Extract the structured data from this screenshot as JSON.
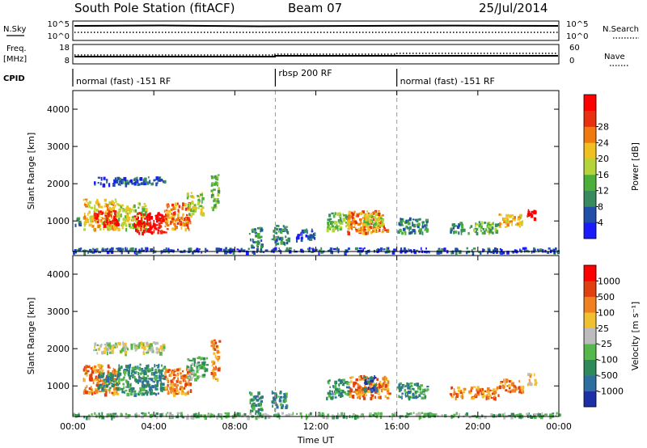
{
  "header": {
    "station": "South Pole Station (fitACF)",
    "beam": "Beam 07",
    "date": "25/Jul/2014"
  },
  "strips": {
    "nsky": {
      "label": "N.Sky",
      "ticks": [
        "10^5",
        "10^0"
      ],
      "right_label": "N.Search",
      "right_ticks": [
        "10^5",
        "10^0"
      ]
    },
    "freq": {
      "label_line1": "Freq.",
      "label_line2": "[MHz]",
      "ticks": [
        "18",
        "8"
      ],
      "right_label": "Nave",
      "right_ticks": [
        "60",
        "0"
      ]
    },
    "cpid": {
      "label": "CPID",
      "segments": [
        {
          "start_hour": 0,
          "end_hour": 10,
          "text": "normal (fast) -151 RF"
        },
        {
          "start_hour": 10,
          "end_hour": 16,
          "text": "rbsp 200 RF"
        },
        {
          "start_hour": 16,
          "end_hour": 24,
          "text": "normal (fast) -151 RF"
        }
      ]
    }
  },
  "colors": {
    "power": [
      "#1a1aff",
      "#1f4fa8",
      "#3a8a5f",
      "#4caf3a",
      "#b5d33a",
      "#f0c020",
      "#f07a10",
      "#e83010",
      "#ff0000"
    ],
    "velocity": [
      "#1c2fa6",
      "#2e6fa0",
      "#2e8a5a",
      "#55b84a",
      "#bcbcbc",
      "#f0c030",
      "#f08020",
      "#e04010",
      "#ff0000"
    ]
  },
  "chart_data": [
    {
      "type": "heatmap",
      "panel": "power",
      "title": "",
      "xlabel": "Time UT",
      "ylabel": "Slant Range [km]",
      "xlim_hours": [
        0,
        24
      ],
      "ylim": [
        180,
        4500
      ],
      "x_ticks": [
        "00:00",
        "04:00",
        "08:00",
        "12:00",
        "16:00",
        "20:00",
        "00:00"
      ],
      "y_ticks": [
        1000,
        2000,
        3000,
        4000
      ],
      "vlines_hours": [
        10,
        16
      ],
      "colorbar": {
        "label": "Power [dB]",
        "ticks": [
          "4",
          "8",
          "12",
          "16",
          "20",
          "24",
          "28"
        ]
      },
      "regions": [
        {
          "t0": 0.1,
          "t1": 0.35,
          "r0": 900,
          "r1": 1200,
          "level": 2
        },
        {
          "t0": 0.5,
          "t1": 2.2,
          "r0": 800,
          "r1": 1600,
          "level": 5
        },
        {
          "t0": 1.0,
          "t1": 2.2,
          "r0": 900,
          "r1": 1300,
          "level": 7
        },
        {
          "t0": 2.2,
          "t1": 3.6,
          "r0": 800,
          "r1": 1500,
          "level": 4
        },
        {
          "t0": 3.0,
          "t1": 4.6,
          "r0": 700,
          "r1": 1250,
          "level": 8
        },
        {
          "t0": 4.5,
          "t1": 5.8,
          "r0": 800,
          "r1": 1500,
          "level": 6
        },
        {
          "t0": 5.6,
          "t1": 6.4,
          "r0": 1200,
          "r1": 1800,
          "level": 4
        },
        {
          "t0": 6.8,
          "t1": 7.2,
          "r0": 1300,
          "r1": 2300,
          "level": 3
        },
        {
          "t0": 1.0,
          "t1": 4.5,
          "r0": 2000,
          "r1": 2200,
          "level": 1
        },
        {
          "t0": 8.7,
          "t1": 9.3,
          "r0": 300,
          "r1": 850,
          "level": 2
        },
        {
          "t0": 9.8,
          "t1": 10.6,
          "r0": 400,
          "r1": 900,
          "level": 2
        },
        {
          "t0": 11.0,
          "t1": 12.0,
          "r0": 500,
          "r1": 800,
          "level": 1
        },
        {
          "t0": 12.5,
          "t1": 13.6,
          "r0": 800,
          "r1": 1250,
          "level": 3
        },
        {
          "t0": 13.5,
          "t1": 15.5,
          "r0": 700,
          "r1": 1300,
          "level": 6
        },
        {
          "t0": 14.3,
          "t1": 15.3,
          "r0": 900,
          "r1": 1250,
          "level": 4
        },
        {
          "t0": 16.0,
          "t1": 17.5,
          "r0": 700,
          "r1": 1100,
          "level": 2
        },
        {
          "t0": 18.6,
          "t1": 19.3,
          "r0": 700,
          "r1": 1000,
          "level": 2
        },
        {
          "t0": 19.5,
          "t1": 21.0,
          "r0": 700,
          "r1": 1000,
          "level": 3
        },
        {
          "t0": 21.0,
          "t1": 22.2,
          "r0": 850,
          "r1": 1200,
          "level": 5
        },
        {
          "t0": 22.4,
          "t1": 22.8,
          "r0": 1050,
          "r1": 1350,
          "level": 8
        },
        {
          "t0": 0.0,
          "t1": 24.0,
          "r0": 180,
          "r1": 300,
          "level": 1
        }
      ]
    },
    {
      "type": "heatmap",
      "panel": "velocity",
      "title": "",
      "xlabel": "Time UT",
      "ylabel": "Slant Range [km]",
      "xlim_hours": [
        0,
        24
      ],
      "ylim": [
        180,
        4500
      ],
      "x_ticks": [
        "00:00",
        "04:00",
        "08:00",
        "12:00",
        "16:00",
        "20:00",
        "00:00"
      ],
      "y_ticks": [
        1000,
        2000,
        3000,
        4000
      ],
      "vlines_hours": [
        10,
        16
      ],
      "colorbar": {
        "label": "Velocity [m s⁻¹]",
        "ticks": [
          "1000",
          "500",
          "100",
          "25",
          "-25",
          "-100",
          "-500",
          "-1000"
        ]
      },
      "regions": [
        {
          "t0": 0.5,
          "t1": 2.2,
          "r0": 800,
          "r1": 1600,
          "level": 6
        },
        {
          "t0": 1.2,
          "t1": 2.2,
          "r0": 900,
          "r1": 1400,
          "level": 2
        },
        {
          "t0": 2.2,
          "t1": 4.5,
          "r0": 800,
          "r1": 1600,
          "level": 2
        },
        {
          "t0": 4.5,
          "t1": 5.8,
          "r0": 800,
          "r1": 1500,
          "level": 6
        },
        {
          "t0": 5.6,
          "t1": 6.6,
          "r0": 1200,
          "r1": 1800,
          "level": 3
        },
        {
          "t0": 6.8,
          "t1": 7.2,
          "r0": 1200,
          "r1": 2300,
          "level": 6
        },
        {
          "t0": 1.0,
          "t1": 4.5,
          "r0": 1900,
          "r1": 2200,
          "level": 4
        },
        {
          "t0": 8.7,
          "t1": 9.3,
          "r0": 300,
          "r1": 850,
          "level": 2
        },
        {
          "t0": 9.8,
          "t1": 10.6,
          "r0": 400,
          "r1": 900,
          "level": 2
        },
        {
          "t0": 12.5,
          "t1": 13.6,
          "r0": 700,
          "r1": 1200,
          "level": 2
        },
        {
          "t0": 13.6,
          "t1": 15.6,
          "r0": 700,
          "r1": 1300,
          "level": 6
        },
        {
          "t0": 14.3,
          "t1": 15.0,
          "r0": 900,
          "r1": 1300,
          "level": 1
        },
        {
          "t0": 16.0,
          "t1": 17.5,
          "r0": 700,
          "r1": 1100,
          "level": 2
        },
        {
          "t0": 18.6,
          "t1": 19.3,
          "r0": 700,
          "r1": 1000,
          "level": 6
        },
        {
          "t0": 19.5,
          "t1": 21.0,
          "r0": 700,
          "r1": 1000,
          "level": 6
        },
        {
          "t0": 21.0,
          "t1": 22.2,
          "r0": 850,
          "r1": 1200,
          "level": 6
        },
        {
          "t0": 22.4,
          "t1": 22.8,
          "r0": 1050,
          "r1": 1350,
          "level": 5
        },
        {
          "t0": 0.0,
          "t1": 24.0,
          "r0": 180,
          "r1": 300,
          "level": 3
        }
      ]
    }
  ]
}
